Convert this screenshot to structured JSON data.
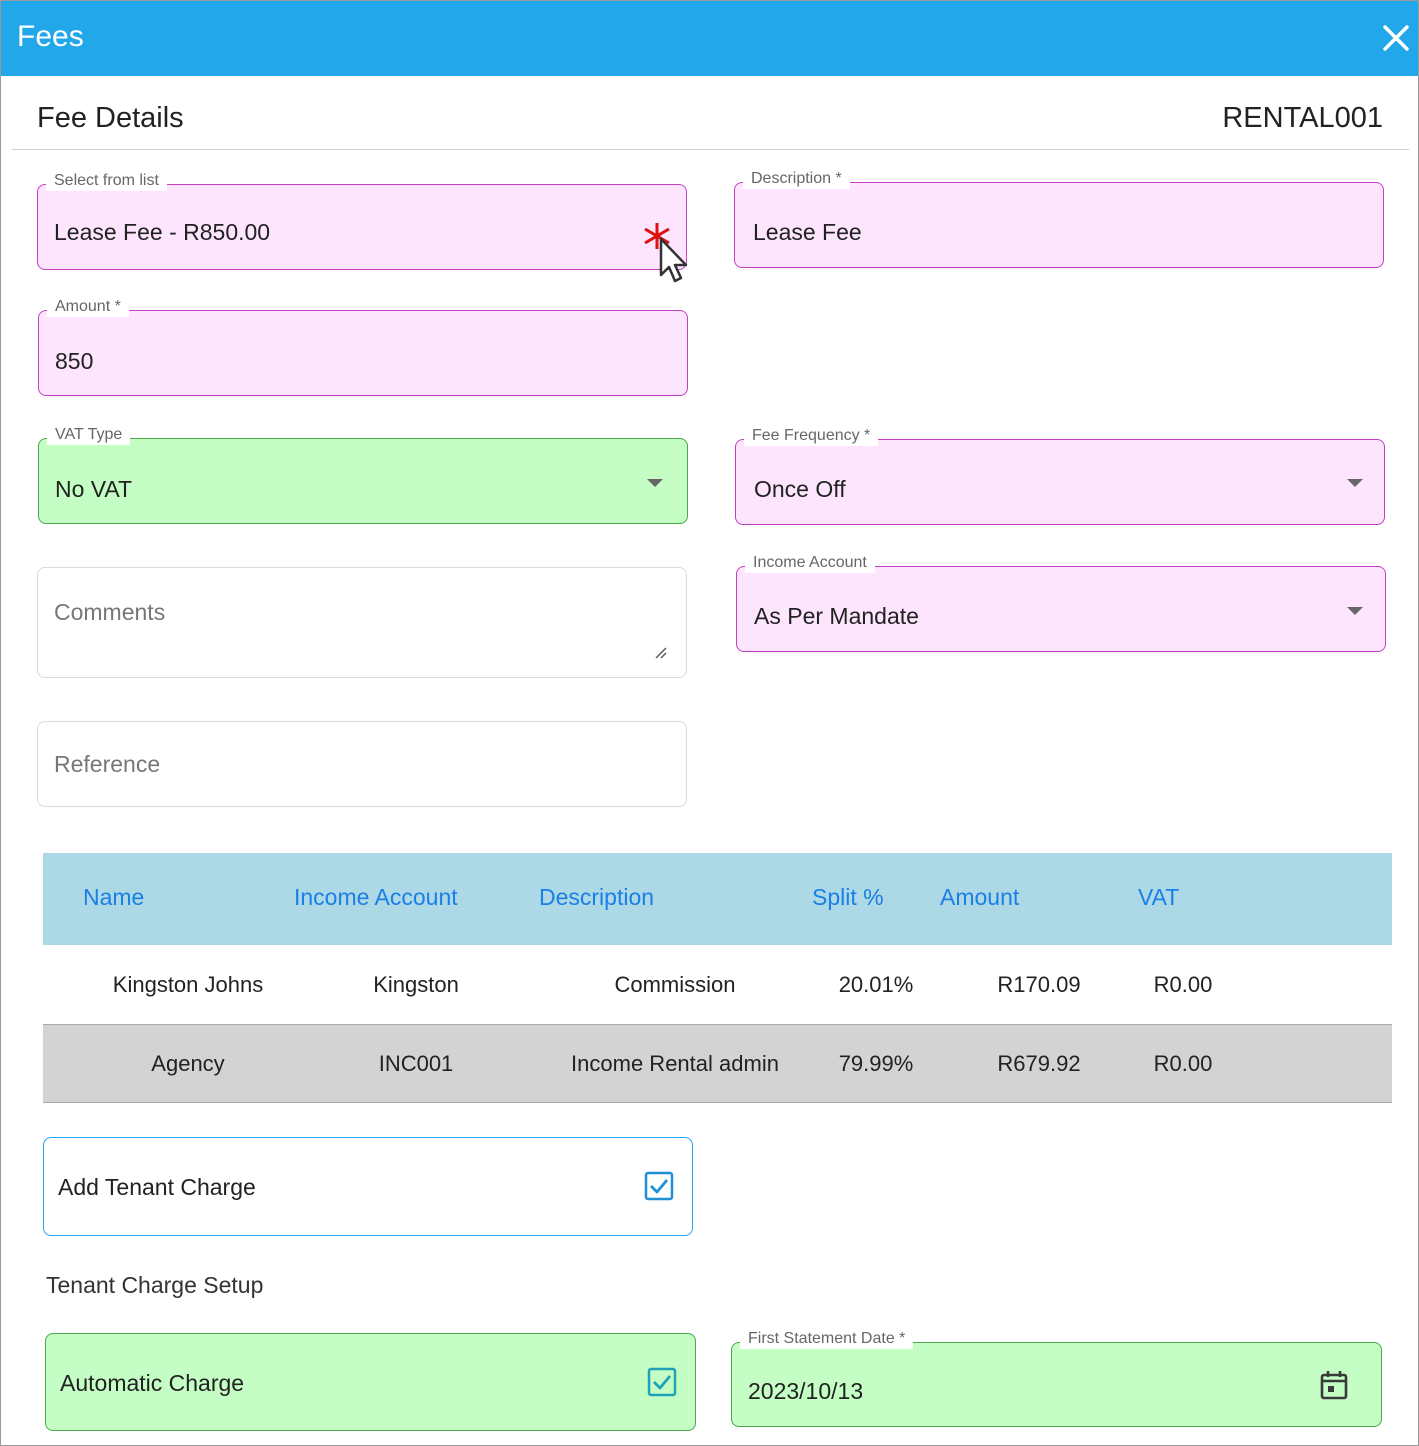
{
  "window": {
    "title": "Fees"
  },
  "header": {
    "section_title": "Fee Details",
    "reference_code": "RENTAL001"
  },
  "form": {
    "select_from_list": {
      "label": "Select from list",
      "value": "Lease Fee - R850.00"
    },
    "description": {
      "label": "Description *",
      "value": "Lease Fee"
    },
    "amount": {
      "label": "Amount *",
      "value": "850"
    },
    "vat_type": {
      "label": "VAT Type",
      "value": "No VAT"
    },
    "fee_frequency": {
      "label": "Fee Frequency *",
      "value": "Once Off"
    },
    "comments": {
      "placeholder": "Comments"
    },
    "income_account": {
      "label": "Income Account",
      "value": "As Per Mandate"
    },
    "reference": {
      "placeholder": "Reference"
    }
  },
  "split_table": {
    "columns": [
      "Name",
      "Income Account",
      "Description",
      "Split %",
      "Amount",
      "VAT"
    ],
    "rows": [
      [
        "Kingston Johns",
        "Kingston",
        "Commission",
        "20.01%",
        "R170.09",
        "R0.00"
      ],
      [
        "Agency",
        "INC001",
        "Income Rental admin",
        "79.99%",
        "R679.92",
        "R0.00"
      ]
    ]
  },
  "tenant": {
    "add_tenant_charge": {
      "label": "Add Tenant Charge",
      "checked": true
    },
    "setup_title": "Tenant Charge Setup",
    "automatic_charge": {
      "label": "Automatic Charge",
      "checked": true
    },
    "first_statement_date": {
      "label": "First Statement Date *",
      "value": "2023/10/13"
    }
  },
  "icons": {
    "close": "close-icon",
    "dropdown": "chevron-down-icon",
    "calendar": "calendar-icon",
    "checkbox": "checkbox-checked-icon",
    "cursor": "mouse-pointer-icon",
    "required_marker": "asterisk-icon"
  },
  "colors": {
    "titlebar": "#22a7ea",
    "invalid_field": "#fde6fd",
    "valid_field": "#c4fec4",
    "grid_header": "#add8e6",
    "link_blue": "#1a7fe6"
  }
}
